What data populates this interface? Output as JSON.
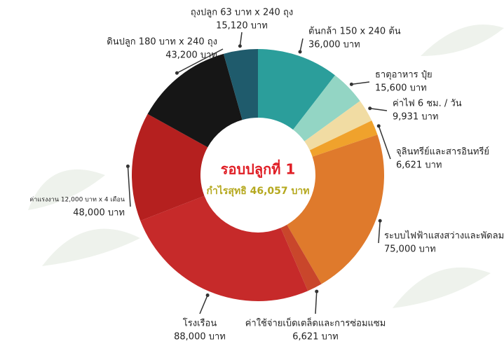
{
  "chart_data": {
    "type": "donut",
    "center_title": "รอบปลูกที่ 1",
    "center_subtitle": "กำไรสุทธิ 46,057 บาท",
    "categories": [
      "ต้นกล้า 150 x 240 ต้น",
      "ธาตุอาหาร ปุ๋ย",
      "ค่าไฟ 6 ชม. / วัน",
      "จุลินทรีย์และสารอินทรีย์",
      "ระบบไฟฟ้าแสงสว่างและพัดลม",
      "ค่าใช้จ่ายเบ็ดเตล็ดและการซ่อมแซม",
      "โรงเรือน",
      "ค่าแรงงาน 12,000 บาท x 4 เดือน",
      "ดินปลูก 180 บาท x 240 ถุง",
      "ถุงปลูก 63 บาท x 240 ถุง"
    ],
    "values": [
      36000,
      15600,
      9931,
      6621,
      75000,
      6621,
      88000,
      48000,
      43200,
      15120
    ],
    "value_labels": [
      "36,000 บาท",
      "15,600 บาท",
      "9,931 บาท",
      "6,621 บาท",
      "75,000 บาท",
      "6,621 บาท",
      "88,000 บาท",
      "48,000 บาท",
      "43,200 บาท",
      "15,120 บาท"
    ],
    "colors": [
      "#2b9e9b",
      "#93d5c4",
      "#f1dca3",
      "#f0a22c",
      "#df7a2c",
      "#c9462b",
      "#c62a2a",
      "#b5201f",
      "#161616",
      "#1f5b6c"
    ]
  }
}
